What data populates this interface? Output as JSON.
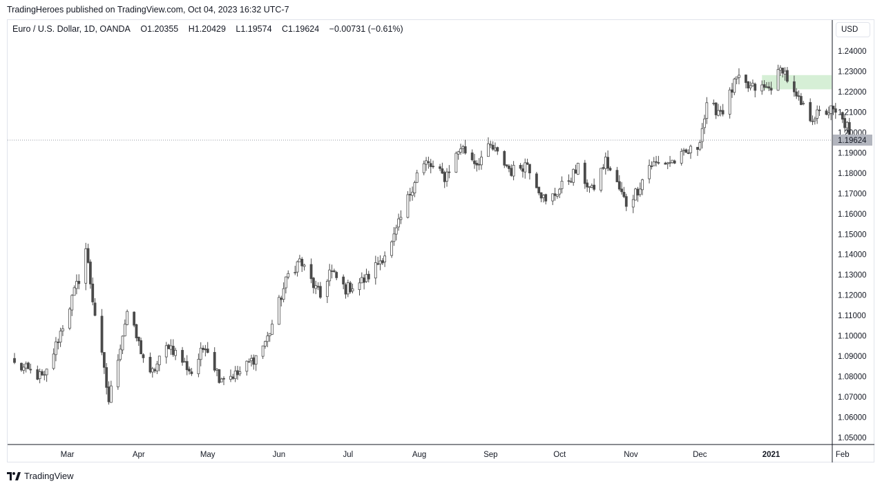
{
  "header": {
    "published": "TradingHeroes published on TradingView.com, Oct 04, 2023 16:32 UTC-7"
  },
  "legend": {
    "symbol": "Euro / U.S. Dollar, 1D, OANDA",
    "open": "O1.20355",
    "high": "H1.20429",
    "low": "L1.19574",
    "close": "C1.19624",
    "change": "−0.00731 (−0.61%)"
  },
  "currency_button": "USD",
  "footer": {
    "brand": "TradingView"
  },
  "colors": {
    "candle": "#4a4a4a",
    "zone": "#d6efd6",
    "price_tag_bg": "#b2b5be",
    "axis_line": "#131722",
    "grid_border": "#e0e3eb"
  },
  "chart_data": {
    "type": "candlestick",
    "title": "Euro / U.S. Dollar, 1D, OANDA",
    "ylim": [
      1.045,
      1.245
    ],
    "y_ticks": [
      "1.24000",
      "1.23000",
      "1.22000",
      "1.21000",
      "1.20000",
      "1.19000",
      "1.18000",
      "1.17000",
      "1.16000",
      "1.15000",
      "1.14000",
      "1.13000",
      "1.12000",
      "1.11000",
      "1.10000",
      "1.09000",
      "1.08000",
      "1.07000",
      "1.06000",
      "1.05000"
    ],
    "x_ticks": [
      {
        "label": "Mar",
        "date": "2020-03-01"
      },
      {
        "label": "Apr",
        "date": "2020-04-01"
      },
      {
        "label": "May",
        "date": "2020-05-01"
      },
      {
        "label": "Jun",
        "date": "2020-06-01"
      },
      {
        "label": "Jul",
        "date": "2020-07-01"
      },
      {
        "label": "Aug",
        "date": "2020-08-01"
      },
      {
        "label": "Sep",
        "date": "2020-09-01"
      },
      {
        "label": "Oct",
        "date": "2020-10-01"
      },
      {
        "label": "Nov",
        "date": "2020-11-01"
      },
      {
        "label": "Dec",
        "date": "2020-12-01"
      },
      {
        "label": "2021",
        "date": "2021-01-01",
        "bold": true
      },
      {
        "label": "Feb",
        "date": "2021-02-01"
      }
    ],
    "last_price": "1.19624",
    "last_price_value": 1.19624,
    "zone": {
      "from": "2020-12-28",
      "to": "2021-02-14",
      "low": 1.2212,
      "high": 1.2282
    },
    "anchors": [
      {
        "date": "2020-02-07",
        "price": 1.086
      },
      {
        "date": "2020-02-20",
        "price": 1.079
      },
      {
        "date": "2020-03-06",
        "price": 1.128
      },
      {
        "date": "2020-03-09",
        "price": 1.143
      },
      {
        "date": "2020-03-12",
        "price": 1.118
      },
      {
        "date": "2020-03-19",
        "price": 1.068
      },
      {
        "date": "2020-03-27",
        "price": 1.112
      },
      {
        "date": "2020-04-06",
        "price": 1.08
      },
      {
        "date": "2020-04-14",
        "price": 1.096
      },
      {
        "date": "2020-04-24",
        "price": 1.082
      },
      {
        "date": "2020-04-30",
        "price": 1.096
      },
      {
        "date": "2020-05-06",
        "price": 1.08
      },
      {
        "date": "2020-05-14",
        "price": 1.081
      },
      {
        "date": "2020-05-22",
        "price": 1.09
      },
      {
        "date": "2020-05-27",
        "price": 1.099
      },
      {
        "date": "2020-06-05",
        "price": 1.13
      },
      {
        "date": "2020-06-10",
        "price": 1.137
      },
      {
        "date": "2020-06-19",
        "price": 1.119
      },
      {
        "date": "2020-06-23",
        "price": 1.132
      },
      {
        "date": "2020-06-30",
        "price": 1.123
      },
      {
        "date": "2020-07-09",
        "price": 1.128
      },
      {
        "date": "2020-07-20",
        "price": 1.145
      },
      {
        "date": "2020-07-31",
        "price": 1.18
      },
      {
        "date": "2020-08-04",
        "price": 1.185
      },
      {
        "date": "2020-08-12",
        "price": 1.178
      },
      {
        "date": "2020-08-19",
        "price": 1.193
      },
      {
        "date": "2020-08-26",
        "price": 1.185
      },
      {
        "date": "2020-09-01",
        "price": 1.193
      },
      {
        "date": "2020-09-10",
        "price": 1.181
      },
      {
        "date": "2020-09-17",
        "price": 1.185
      },
      {
        "date": "2020-09-25",
        "price": 1.165
      },
      {
        "date": "2020-10-09",
        "price": 1.182
      },
      {
        "date": "2020-10-15",
        "price": 1.171
      },
      {
        "date": "2020-10-21",
        "price": 1.186
      },
      {
        "date": "2020-10-30",
        "price": 1.165
      },
      {
        "date": "2020-11-04",
        "price": 1.172
      },
      {
        "date": "2020-11-09",
        "price": 1.184
      },
      {
        "date": "2020-11-20",
        "price": 1.186
      },
      {
        "date": "2020-11-30",
        "price": 1.193
      },
      {
        "date": "2020-12-04",
        "price": 1.212
      },
      {
        "date": "2020-12-11",
        "price": 1.211
      },
      {
        "date": "2020-12-17",
        "price": 1.226
      },
      {
        "date": "2020-12-22",
        "price": 1.222
      },
      {
        "date": "2020-12-31",
        "price": 1.2215
      },
      {
        "date": "2021-01-06",
        "price": 1.232
      },
      {
        "date": "2021-01-11",
        "price": 1.218
      },
      {
        "date": "2021-01-18",
        "price": 1.2075
      },
      {
        "date": "2021-01-27",
        "price": 1.211
      },
      {
        "date": "2021-02-03",
        "price": 1.203
      },
      {
        "date": "2021-02-04",
        "price": 1.19624
      }
    ]
  }
}
